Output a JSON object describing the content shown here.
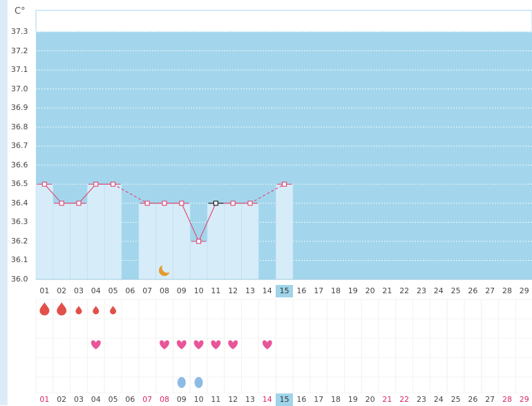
{
  "chart_data": {
    "type": "line",
    "unit_label": "C°",
    "y_ticks": [
      "37.3",
      "37.2",
      "37.1",
      "37.0",
      "36.9",
      "36.8",
      "36.7",
      "36.6",
      "36.5",
      "36.4",
      "36.3",
      "36.2",
      "36.1",
      "36.0"
    ],
    "ylim": [
      36.0,
      37.3
    ],
    "x_labels": [
      "01",
      "02",
      "03",
      "04",
      "05",
      "06",
      "07",
      "08",
      "09",
      "10",
      "11",
      "12",
      "13",
      "14",
      "15",
      "16",
      "17",
      "18",
      "19",
      "20",
      "21",
      "22",
      "23",
      "24",
      "25",
      "26",
      "27",
      "28",
      "29"
    ],
    "temperatures": [
      {
        "day": "01",
        "value": 36.5
      },
      {
        "day": "02",
        "value": 36.4
      },
      {
        "day": "03",
        "value": 36.4
      },
      {
        "day": "04",
        "value": 36.5
      },
      {
        "day": "05",
        "value": 36.5
      },
      {
        "day": "07",
        "value": 36.4
      },
      {
        "day": "08",
        "value": 36.4
      },
      {
        "day": "09",
        "value": 36.4
      },
      {
        "day": "10",
        "value": 36.2
      },
      {
        "day": "11",
        "value": 36.4
      },
      {
        "day": "12",
        "value": 36.4
      },
      {
        "day": "13",
        "value": 36.4
      },
      {
        "day": "15",
        "value": 36.5
      }
    ],
    "selected_day": "11",
    "today": "15",
    "red_days_bottom": [
      "01",
      "07",
      "08",
      "14",
      "21",
      "22",
      "28",
      "29"
    ],
    "moon_day": "08",
    "period_flow": [
      {
        "day": "01",
        "level": "heavy"
      },
      {
        "day": "02",
        "level": "heavy"
      },
      {
        "day": "03",
        "level": "light"
      },
      {
        "day": "04",
        "level": "light"
      },
      {
        "day": "05",
        "level": "light"
      }
    ],
    "heart_days": [
      "04",
      "08",
      "09",
      "10",
      "11",
      "12",
      "14"
    ],
    "drop_days": [
      "09",
      "10"
    ],
    "colors": {
      "background_band": "#a3d6ec",
      "recorded_bar": "#d7ecf9",
      "line": "#d94f7a",
      "heart": "#e8559a",
      "blood": "#e2504a",
      "drop": "#8ebbe6",
      "moon": "#e39a2f",
      "weekend_red": "#e0245e",
      "today_highlight": "#9fd4ea"
    }
  }
}
